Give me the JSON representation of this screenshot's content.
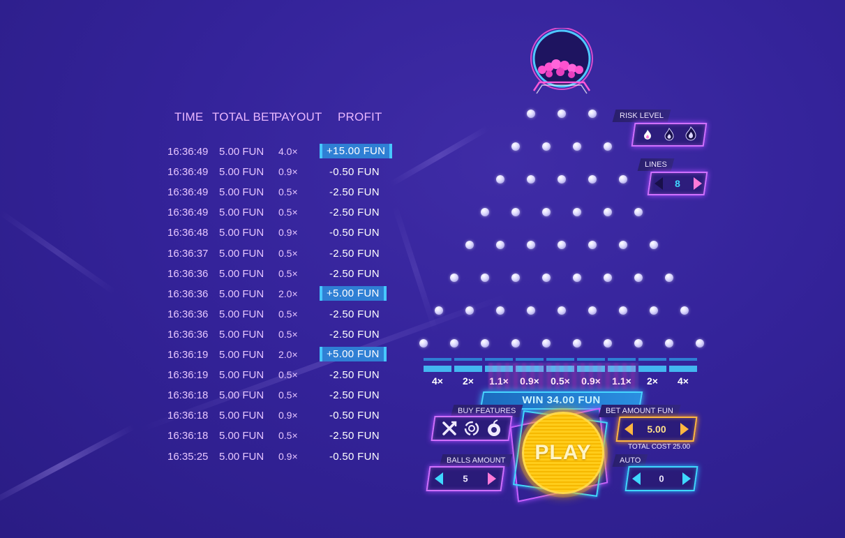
{
  "history": {
    "headers": {
      "time": "TIME",
      "total_bet": "TOTAL BET",
      "payout": "PAYOUT",
      "profit": "PROFIT"
    },
    "rows": [
      {
        "time": "16:36:49",
        "bet": "5.00 FUN",
        "payout": "4.0×",
        "profit": "+15.00 FUN",
        "win": true
      },
      {
        "time": "16:36:49",
        "bet": "5.00 FUN",
        "payout": "0.9×",
        "profit": "-0.50 FUN",
        "win": false
      },
      {
        "time": "16:36:49",
        "bet": "5.00 FUN",
        "payout": "0.5×",
        "profit": "-2.50 FUN",
        "win": false
      },
      {
        "time": "16:36:49",
        "bet": "5.00 FUN",
        "payout": "0.5×",
        "profit": "-2.50 FUN",
        "win": false
      },
      {
        "time": "16:36:48",
        "bet": "5.00 FUN",
        "payout": "0.9×",
        "profit": "-0.50 FUN",
        "win": false
      },
      {
        "time": "16:36:37",
        "bet": "5.00 FUN",
        "payout": "0.5×",
        "profit": "-2.50 FUN",
        "win": false
      },
      {
        "time": "16:36:36",
        "bet": "5.00 FUN",
        "payout": "0.5×",
        "profit": "-2.50 FUN",
        "win": false
      },
      {
        "time": "16:36:36",
        "bet": "5.00 FUN",
        "payout": "2.0×",
        "profit": "+5.00 FUN",
        "win": true
      },
      {
        "time": "16:36:36",
        "bet": "5.00 FUN",
        "payout": "0.5×",
        "profit": "-2.50 FUN",
        "win": false
      },
      {
        "time": "16:36:36",
        "bet": "5.00 FUN",
        "payout": "0.5×",
        "profit": "-2.50 FUN",
        "win": false
      },
      {
        "time": "16:36:19",
        "bet": "5.00 FUN",
        "payout": "2.0×",
        "profit": "+5.00 FUN",
        "win": true
      },
      {
        "time": "16:36:19",
        "bet": "5.00 FUN",
        "payout": "0.5×",
        "profit": "-2.50 FUN",
        "win": false
      },
      {
        "time": "16:36:18",
        "bet": "5.00 FUN",
        "payout": "0.5×",
        "profit": "-2.50 FUN",
        "win": false
      },
      {
        "time": "16:36:18",
        "bet": "5.00 FUN",
        "payout": "0.9×",
        "profit": "-0.50 FUN",
        "win": false
      },
      {
        "time": "16:36:18",
        "bet": "5.00 FUN",
        "payout": "0.5×",
        "profit": "-2.50 FUN",
        "win": false
      },
      {
        "time": "16:35:25",
        "bet": "5.00 FUN",
        "payout": "0.9×",
        "profit": "-0.50 FUN",
        "win": false
      }
    ]
  },
  "board": {
    "multipliers": [
      "4×",
      "2×",
      "1.1×",
      "0.9×",
      "0.5×",
      "0.9×",
      "1.1×",
      "2×",
      "4×"
    ]
  },
  "controls": {
    "risk_level_label": "RISK LEVEL",
    "risk_icons": [
      "flame-low-icon",
      "flame-medium-icon",
      "flame-high-icon"
    ],
    "lines_label": "LINES",
    "lines_value": "8",
    "win_text": "WIN 34.00 FUN",
    "buy_features_label": "BUY FEATURES",
    "feature_icons": [
      "cross-arrows-icon",
      "swirl-icon",
      "bomb-icon"
    ],
    "bet_amount_label": "BET AMOUNT FUN",
    "bet_amount_value": "5.00",
    "total_cost_text": "TOTAL COST 25.00",
    "play_label": "PLAY",
    "balls_amount_label": "BALLS AMOUNT",
    "balls_amount_value": "5",
    "auto_label": "AUTO",
    "auto_value": "0"
  },
  "colors": {
    "background": "#34239a",
    "accent_cyan": "#3fd8ff",
    "accent_magenta": "#d070ff",
    "accent_gold": "#ffb640",
    "win_highlight": "#2f7fd4"
  }
}
